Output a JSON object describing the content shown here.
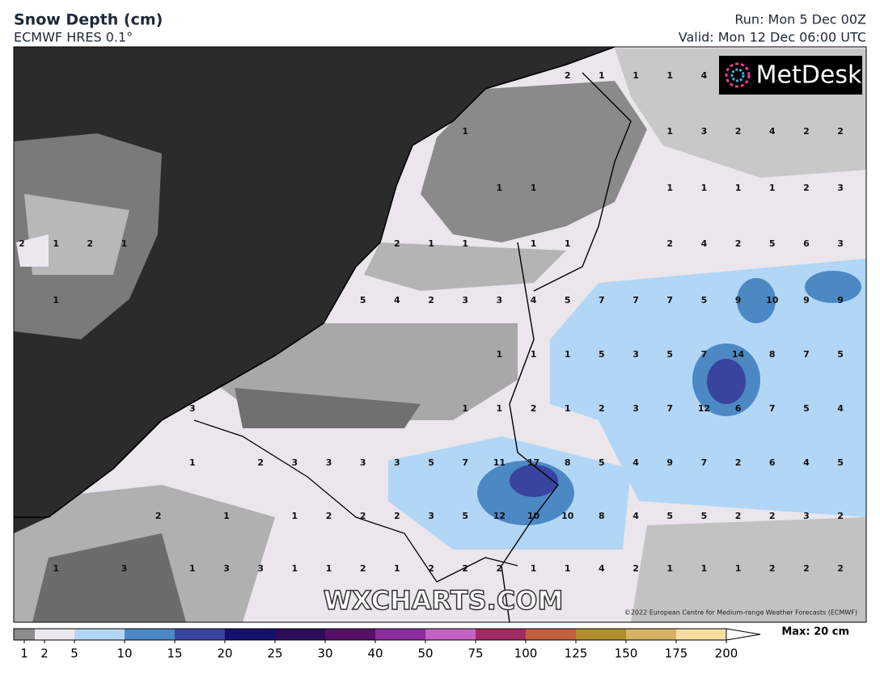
{
  "header": {
    "title": "Snow Depth (cm)",
    "model": "ECMWF HRES 0.1°",
    "run": "Run: Mon 5 Dec 00Z",
    "valid": "Valid: Mon 12 Dec 06:00 UTC"
  },
  "logo": "MetDesk",
  "watermark": "WXCHARTS.COM",
  "copyright": "©2022 European Centre for Medium-range Weather Forecasts (ECMWF)",
  "map": {
    "labels": [
      [
        null,
        null,
        null,
        null,
        null,
        null,
        null,
        null,
        null,
        null,
        null,
        null,
        null,
        null,
        null,
        null,
        2,
        1,
        1,
        1,
        4,
        null,
        null,
        null,
        null
      ],
      [
        null,
        null,
        null,
        null,
        null,
        null,
        null,
        null,
        null,
        null,
        null,
        null,
        null,
        1,
        null,
        null,
        null,
        null,
        null,
        1,
        3,
        2,
        4,
        2,
        2
      ],
      [
        null,
        null,
        null,
        null,
        null,
        null,
        null,
        null,
        null,
        null,
        null,
        null,
        null,
        null,
        1,
        1,
        null,
        null,
        null,
        1,
        1,
        1,
        1,
        2,
        3
      ],
      [
        2,
        1,
        2,
        1,
        null,
        null,
        null,
        null,
        null,
        null,
        null,
        2,
        1,
        1,
        null,
        1,
        1,
        null,
        null,
        2,
        4,
        2,
        5,
        6,
        3
      ],
      [
        null,
        1,
        null,
        null,
        null,
        null,
        null,
        null,
        null,
        null,
        5,
        4,
        2,
        3,
        3,
        4,
        5,
        7,
        7,
        7,
        5,
        9,
        10,
        9,
        9
      ],
      [
        null,
        null,
        null,
        null,
        null,
        null,
        null,
        null,
        null,
        null,
        null,
        null,
        null,
        null,
        1,
        1,
        1,
        5,
        3,
        5,
        7,
        14,
        8,
        7,
        5
      ],
      [
        null,
        null,
        null,
        null,
        null,
        3,
        null,
        null,
        null,
        null,
        null,
        null,
        null,
        1,
        1,
        2,
        1,
        2,
        3,
        7,
        12,
        6,
        7,
        5,
        4
      ],
      [
        null,
        null,
        null,
        null,
        null,
        1,
        null,
        2,
        3,
        3,
        3,
        3,
        5,
        7,
        11,
        17,
        8,
        5,
        4,
        9,
        7,
        2,
        6,
        4,
        5
      ],
      [
        null,
        null,
        null,
        null,
        2,
        null,
        1,
        null,
        1,
        2,
        2,
        2,
        3,
        5,
        12,
        10,
        10,
        8,
        4,
        5,
        5,
        2,
        2,
        3,
        2
      ],
      [
        null,
        1,
        null,
        3,
        null,
        1,
        3,
        3,
        1,
        1,
        2,
        1,
        2,
        2,
        2,
        1,
        1,
        4,
        2,
        1,
        1,
        1,
        2,
        2,
        2
      ]
    ]
  },
  "legend": {
    "ticks": [
      1,
      2,
      5,
      10,
      15,
      20,
      25,
      30,
      40,
      50,
      75,
      100,
      125,
      150,
      175,
      200
    ],
    "colors": [
      "#8c8c8c",
      "#ebe7ee",
      "#b2d6f5",
      "#4c88c4",
      "#38449e",
      "#12126e",
      "#2c0c58",
      "#561068",
      "#8a2c9e",
      "#c262c4",
      "#a02a62",
      "#c0603e",
      "#b08e30",
      "#d6b264",
      "#f6dea2"
    ],
    "max": "Max: 20 cm"
  }
}
